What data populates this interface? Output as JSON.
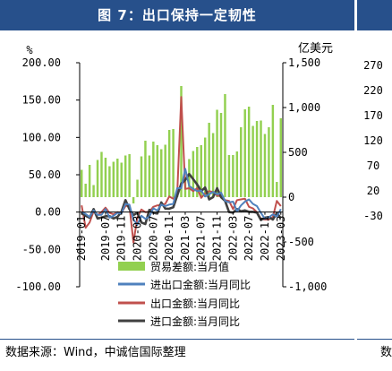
{
  "figure_title": "图 7：出口保持一定韧性",
  "source_note": "数据来源：Wind，中诚信国际整理",
  "side_panel": {
    "source_fragment": "数",
    "ticks": [
      "270",
      "220",
      "170",
      "120",
      "70",
      "20",
      "-30"
    ]
  },
  "chart_data": {
    "type": "bar+line",
    "left_axis": {
      "unit_label": "%",
      "range": [
        -100,
        200
      ],
      "ticks": [
        "200.00",
        "150.00",
        "100.00",
        "50.00",
        "0.00",
        "-50.00",
        "-100.00"
      ]
    },
    "right_axis": {
      "unit_label": "亿美元",
      "range": [
        -1000,
        1500
      ],
      "ticks": [
        "1,500",
        "1,000",
        "500",
        "0",
        "-500",
        "-1,000"
      ]
    },
    "x_tick_labels": [
      "2019-01",
      "2019-07",
      "2019-11",
      "2020-03",
      "2020-07",
      "2020-11",
      "2021-03",
      "2021-07",
      "2021-11",
      "2022-03",
      "2022-07",
      "2022-11",
      "2023-03"
    ],
    "x_tick_months": [
      0,
      6,
      10,
      14,
      18,
      22,
      26,
      30,
      34,
      38,
      42,
      46,
      50
    ],
    "legend": [
      "贸易差额:当月值",
      "进出口金额:当月同比",
      "出口金额:当月同比",
      "进口金额:当月同比"
    ],
    "colors": {
      "bars": "#92d050",
      "total": "#4f81bd",
      "export": "#c0504d",
      "import": "#404040"
    },
    "months": 51,
    "trade_balance": [
      305,
      150,
      360,
      135,
      415,
      505,
      440,
      345,
      395,
      430,
      385,
      465,
      480,
      -70,
      195,
      455,
      630,
      465,
      620,
      580,
      535,
      585,
      750,
      760,
      80,
      1240,
      190,
      425,
      515,
      560,
      580,
      665,
      830,
      715,
      975,
      940,
      1150,
      470,
      470,
      510,
      780,
      980,
      1010,
      795,
      850,
      855,
      705,
      780,
      1030,
      170,
      880
    ],
    "total_yoy": [
      0.3,
      -2.5,
      -6.5,
      2.2,
      -3.8,
      -3.6,
      4.0,
      -7.3,
      -5.0,
      -1.0,
      -2.0,
      11.0,
      10.0,
      -10.0,
      -17.0,
      -5.0,
      -9.0,
      -6.0,
      5.0,
      2.0,
      10.0,
      8.0,
      10.0,
      11.0,
      32.0,
      32.0,
      58.0,
      35.0,
      31.0,
      28.0,
      29.0,
      21.0,
      24.0,
      27.0,
      24.0,
      26.0,
      15.0,
      13.0,
      14.0,
      1.0,
      9.0,
      14.0,
      17.0,
      11.0,
      8.0,
      -1.0,
      -9.0,
      -7.0,
      -3.0,
      -6.0,
      4.0
    ],
    "export_yoy": [
      9.0,
      -21.0,
      -14.0,
      1.0,
      -4.0,
      0.1,
      6.0,
      -1.0,
      -3.0,
      0.0,
      -1.0,
      8.0,
      9.0,
      -41.0,
      -7.0,
      3.5,
      0.0,
      0.5,
      7.0,
      9.0,
      9.5,
      11.0,
      21.0,
      18.0,
      24.0,
      154.0,
      31.0,
      32.0,
      28.0,
      32.0,
      19.0,
      25.0,
      28.0,
      27.0,
      22.0,
      21.0,
      16.0,
      15.0,
      4.0,
      16.0,
      17.0,
      18.0,
      7.0,
      5.0,
      -0.3,
      -9.0,
      -10.0,
      -10.0,
      -7.0,
      15.0,
      8.0
    ],
    "import_yoy": [
      -1.5,
      -5.0,
      -7.5,
      4.0,
      -8.5,
      -7.3,
      -5.6,
      -5.6,
      -8.5,
      -6.4,
      0.3,
      16.0,
      4.0,
      -4.0,
      -1.0,
      -14.0,
      -16.0,
      3.0,
      -1.0,
      -2.0,
      13.0,
      4.7,
      4.5,
      6.5,
      22.0,
      38.0,
      43.0,
      51.0,
      44.0,
      37.0,
      28.0,
      33.0,
      17.0,
      20.0,
      32.0,
      20.0,
      15.0,
      0.1,
      -0.8,
      4.0,
      1.0,
      2.3,
      0.3,
      0.3,
      -0.7,
      -10.6,
      -7.5,
      -6.7,
      -10.0,
      -1.4,
      -8.0
    ]
  }
}
